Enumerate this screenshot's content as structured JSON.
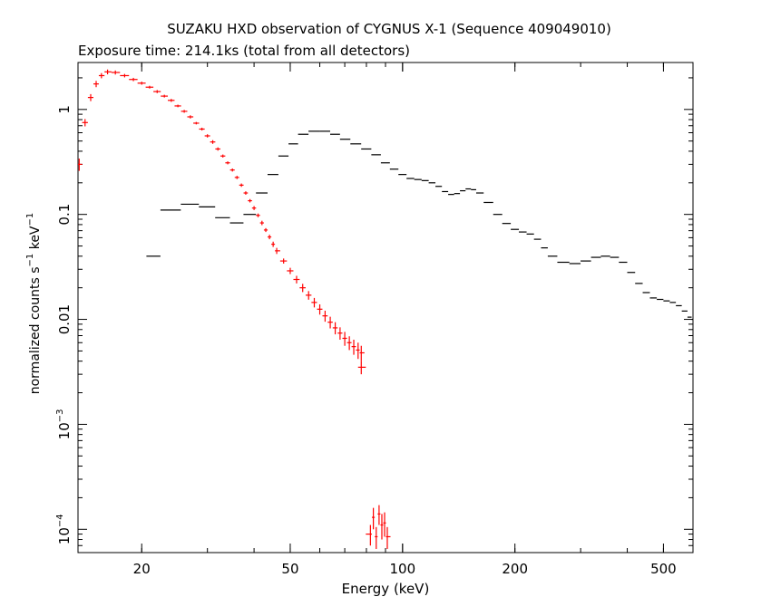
{
  "chart_data": {
    "type": "scatter",
    "title": "SUZAKU HXD observation of CYGNUS X-1 (Sequence 409049010)",
    "subtitle": "Exposure time: 214.1ks (total from all detectors)",
    "xlabel": "Energy (keV)",
    "ylabel": {
      "prefix": "normalized counts s",
      "exp1": "−1",
      "mid": " keV",
      "exp2": "−1"
    },
    "x_scale": "log",
    "y_scale": "log",
    "xlim": [
      13.5,
      600
    ],
    "ylim": [
      6e-05,
      2.8
    ],
    "x_ticks": [
      {
        "value": 20,
        "label": "20"
      },
      {
        "value": 50,
        "label": "50"
      },
      {
        "value": 100,
        "label": "100"
      },
      {
        "value": 200,
        "label": "200"
      },
      {
        "value": 500,
        "label": "500"
      }
    ],
    "y_ticks": [
      {
        "value": 1,
        "label": "1",
        "exp": ""
      },
      {
        "value": 0.1,
        "label": "0.1",
        "exp": ""
      },
      {
        "value": 0.01,
        "label": "0.01",
        "exp": ""
      },
      {
        "value": 0.001,
        "label": "10",
        "exp": "−3"
      },
      {
        "value": 0.0001,
        "label": "10",
        "exp": "−4"
      }
    ],
    "series": [
      {
        "color": "#ff0000",
        "points": [
          [
            13.6,
            0.3,
            0.04
          ],
          [
            14.1,
            0.75,
            0.06
          ],
          [
            14.6,
            1.3,
            0.1
          ],
          [
            15.1,
            1.75,
            0.12
          ],
          [
            15.6,
            2.1,
            0.12
          ],
          [
            16.2,
            2.28,
            0.12
          ],
          [
            17.0,
            2.25,
            0.1
          ],
          [
            18.0,
            2.1,
            0.08
          ],
          [
            19.0,
            1.93,
            0.07
          ],
          [
            20.0,
            1.78,
            0.06
          ],
          [
            21.0,
            1.63,
            0.05
          ],
          [
            22.0,
            1.48,
            0.05
          ],
          [
            23.0,
            1.34,
            0.04
          ],
          [
            24.0,
            1.22,
            0.04
          ],
          [
            25.0,
            1.08,
            0.03
          ],
          [
            26.0,
            0.96,
            0.03
          ],
          [
            27.0,
            0.85,
            0.03
          ],
          [
            28.0,
            0.74,
            0.02
          ],
          [
            29.0,
            0.65,
            0.02
          ],
          [
            30.0,
            0.56,
            0.02
          ],
          [
            31.0,
            0.49,
            0.02
          ],
          [
            32.0,
            0.42,
            0.015
          ],
          [
            33.0,
            0.36,
            0.012
          ],
          [
            34.0,
            0.31,
            0.01
          ],
          [
            35.0,
            0.265,
            0.009
          ],
          [
            36.0,
            0.225,
            0.008
          ],
          [
            37.0,
            0.19,
            0.007
          ],
          [
            38.0,
            0.16,
            0.006
          ],
          [
            39.0,
            0.135,
            0.005
          ],
          [
            40.0,
            0.115,
            0.005
          ],
          [
            41.0,
            0.098,
            0.004
          ],
          [
            42.0,
            0.083,
            0.004
          ],
          [
            43.0,
            0.071,
            0.003
          ],
          [
            44.0,
            0.061,
            0.003
          ],
          [
            45.0,
            0.052,
            0.003
          ],
          [
            46.0,
            0.045,
            0.003
          ],
          [
            48.0,
            0.036,
            0.002
          ],
          [
            50.0,
            0.029,
            0.002
          ],
          [
            52.0,
            0.024,
            0.002
          ],
          [
            54.0,
            0.02,
            0.0018
          ],
          [
            56.0,
            0.017,
            0.0016
          ],
          [
            58.0,
            0.0145,
            0.0015
          ],
          [
            60.0,
            0.0125,
            0.0014
          ],
          [
            62.0,
            0.0108,
            0.0013
          ],
          [
            64.0,
            0.0094,
            0.0012
          ],
          [
            66.0,
            0.0083,
            0.0011
          ],
          [
            68.0,
            0.0074,
            0.001
          ],
          [
            70.0,
            0.0066,
            0.001
          ],
          [
            72.0,
            0.006,
            0.0009
          ],
          [
            74.0,
            0.0055,
            0.0009
          ],
          [
            76.0,
            0.0051,
            0.0009
          ],
          [
            77.5,
            0.0048,
            0.0008
          ],
          [
            77.5,
            0.0035,
            0.0005
          ],
          [
            82.0,
            9e-05,
            2e-05
          ],
          [
            83.5,
            0.00013,
            3e-05
          ],
          [
            85.0,
            8.5e-05,
            2e-05
          ],
          [
            86.5,
            0.00014,
            3e-05
          ],
          [
            88.0,
            0.00011,
            3e-05
          ],
          [
            89.5,
            0.000115,
            3e-05
          ],
          [
            91.0,
            8.5e-05,
            2e-05
          ]
        ]
      },
      {
        "color": "#000000",
        "points": [
          [
            21.0,
            0.04
          ],
          [
            24.0,
            0.11
          ],
          [
            27.0,
            0.125
          ],
          [
            30.0,
            0.118
          ],
          [
            33.0,
            0.093
          ],
          [
            36.0,
            0.083
          ],
          [
            39.0,
            0.1
          ],
          [
            42.0,
            0.16
          ],
          [
            45.0,
            0.24
          ],
          [
            48.0,
            0.36
          ],
          [
            51.0,
            0.47
          ],
          [
            54.0,
            0.58
          ],
          [
            58.0,
            0.62
          ],
          [
            62.0,
            0.62
          ],
          [
            66.0,
            0.58
          ],
          [
            70.0,
            0.52
          ],
          [
            75.0,
            0.47
          ],
          [
            80.0,
            0.42
          ],
          [
            85.0,
            0.37
          ],
          [
            90.0,
            0.31
          ],
          [
            95.0,
            0.27
          ],
          [
            100.0,
            0.24
          ],
          [
            105.0,
            0.22
          ],
          [
            110.0,
            0.215
          ],
          [
            115.0,
            0.21
          ],
          [
            120.0,
            0.2
          ],
          [
            125.0,
            0.185
          ],
          [
            130.0,
            0.165
          ],
          [
            135.0,
            0.155
          ],
          [
            140.0,
            0.158
          ],
          [
            145.0,
            0.168
          ],
          [
            150.0,
            0.175
          ],
          [
            155.0,
            0.172
          ],
          [
            160.0,
            0.16
          ],
          [
            170.0,
            0.13
          ],
          [
            180.0,
            0.1
          ],
          [
            190.0,
            0.082
          ],
          [
            200.0,
            0.072
          ],
          [
            210.0,
            0.068
          ],
          [
            220.0,
            0.065
          ],
          [
            230.0,
            0.058
          ],
          [
            240.0,
            0.048
          ],
          [
            250.0,
            0.04
          ],
          [
            270.0,
            0.035
          ],
          [
            290.0,
            0.034
          ],
          [
            310.0,
            0.036
          ],
          [
            330.0,
            0.039
          ],
          [
            350.0,
            0.04
          ],
          [
            370.0,
            0.039
          ],
          [
            390.0,
            0.035
          ],
          [
            410.0,
            0.028
          ],
          [
            430.0,
            0.022
          ],
          [
            450.0,
            0.018
          ],
          [
            470.0,
            0.016
          ],
          [
            490.0,
            0.0155
          ],
          [
            510.0,
            0.015
          ],
          [
            530.0,
            0.0145
          ],
          [
            550.0,
            0.0135
          ],
          [
            570.0,
            0.012
          ],
          [
            590.0,
            0.0105
          ],
          [
            600.0,
            0.01
          ]
        ]
      }
    ]
  }
}
